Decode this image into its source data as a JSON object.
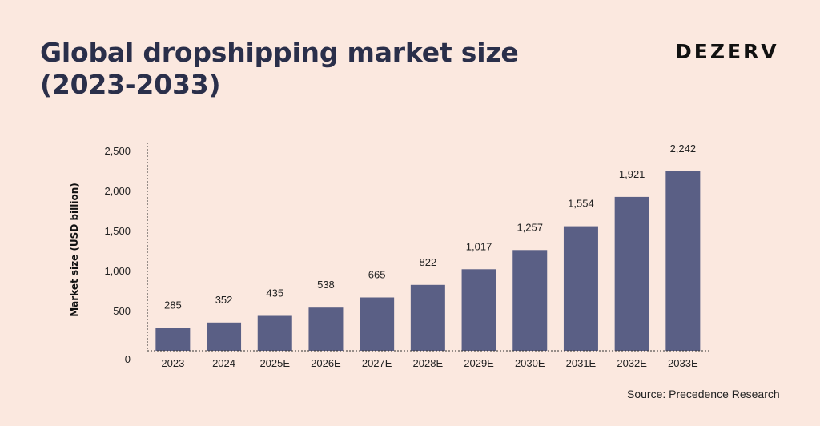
{
  "title_line1": "Global dropshipping market size",
  "title_line2": "(2023-2033)",
  "brand": "DEZERV",
  "source": "Source: Precedence Research",
  "colors": {
    "background": "#fbe8df",
    "bar": "#5a5f85",
    "title": "#2a2f4a"
  },
  "chart_data": {
    "type": "bar",
    "categories": [
      "2023",
      "2024",
      "2025E",
      "2026E",
      "2027E",
      "2028E",
      "2029E",
      "2030E",
      "2031E",
      "2032E",
      "2033E"
    ],
    "values": [
      285,
      352,
      435,
      538,
      665,
      822,
      1017,
      1257,
      1554,
      1921,
      2242
    ],
    "value_labels": [
      "285",
      "352",
      "435",
      "538",
      "665",
      "822",
      "1,017",
      "1,257",
      "1,554",
      "1,921",
      "2,242"
    ],
    "ylabel": "Market size (USD billion)",
    "ylim": [
      0,
      2500
    ],
    "yticks": [
      0,
      500,
      1000,
      1500,
      2000,
      2500
    ],
    "ytick_labels": [
      "0",
      "500",
      "1,000",
      "1,500",
      "2,000",
      "2,500"
    ],
    "grid": false
  }
}
